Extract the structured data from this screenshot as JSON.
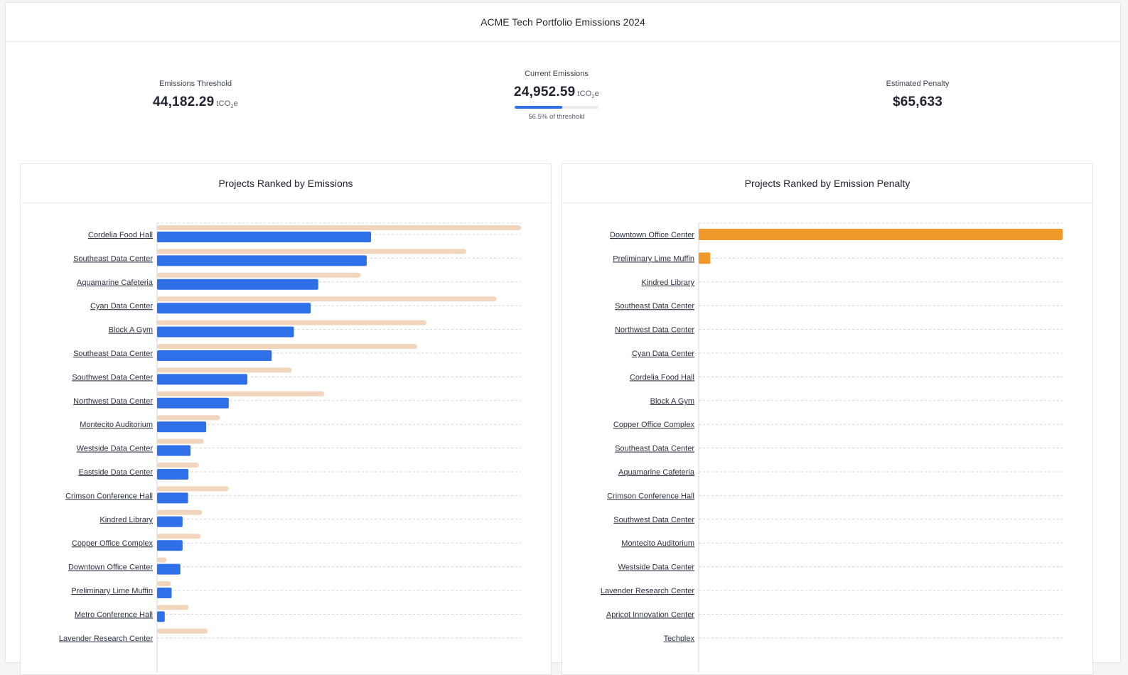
{
  "header": {
    "title": "ACME Tech Portfolio Emissions 2024"
  },
  "metrics": {
    "threshold": {
      "label": "Emissions Threshold",
      "value": "44,182.29",
      "unit": "tCO",
      "unit_sub": "2",
      "unit_tail": "e"
    },
    "current": {
      "label": "Current Emissions",
      "value": "24,952.59",
      "unit": "tCO",
      "unit_sub": "2",
      "unit_tail": "e",
      "progress_fraction": 0.565,
      "progress_caption": "56.5% of threshold"
    },
    "penalty": {
      "label": "Estimated Penalty",
      "value": "$65,633"
    }
  },
  "colors": {
    "emissions": "#2f6fe8",
    "threshold": "#f1d5bd",
    "penalty": "#f0992b",
    "grid": "#cfd3d8"
  },
  "chart_data": [
    {
      "type": "bar",
      "orientation": "horizontal",
      "title": "Projects Ranked by Emissions",
      "categories": [
        "Cordelia Food Hall",
        "Southeast Data Center",
        "Aquamarine Cafeteria",
        "Cyan Data Center",
        "Block A Gym",
        "Southeast Data Center",
        "Southwest Data Center",
        "Northwest Data Center",
        "Montecito Auditorium",
        "Westside Data Center",
        "Eastside Data Center",
        "Crimson Conference Hall",
        "Kindred Library",
        "Copper Office Complex",
        "Downtown Office Center",
        "Preliminary Lime Muffin",
        "Metro Conference Hall",
        "Lavender Research Center"
      ],
      "series": [
        {
          "key": "threshold",
          "values": [
            100,
            85,
            56,
            93.3,
            74,
            71.5,
            37,
            46,
            17.3,
            12.8,
            11.5,
            19.6,
            12.4,
            12,
            2.6,
            3.8,
            8.7,
            13.9
          ]
        },
        {
          "key": "emissions",
          "values": [
            58.8,
            57.6,
            44.3,
            42.2,
            37.6,
            31.5,
            24.8,
            19.7,
            13.5,
            9.2,
            8.6,
            8.5,
            7,
            7,
            6.4,
            4,
            2.1,
            0
          ]
        }
      ],
      "xlim": [
        0,
        100
      ],
      "grid": true
    },
    {
      "type": "bar",
      "orientation": "horizontal",
      "title": "Projects Ranked by Emission Penalty",
      "categories": [
        "Downtown Office Center",
        "Preliminary Lime Muffin",
        "Kindred Library",
        "Southeast Data Center",
        "Northwest Data Center",
        "Cyan Data Center",
        "Cordelia Food Hall",
        "Block A Gym",
        "Copper Office Complex",
        "Southeast Data Center",
        "Aquamarine Cafeteria",
        "Crimson Conference Hall",
        "Southwest Data Center",
        "Montecito Auditorium",
        "Westside Data Center",
        "Lavender Research Center",
        "Apricot Innovation Center",
        "Techplex"
      ],
      "series": [
        {
          "key": "penalty",
          "values": [
            100,
            3.2,
            0,
            0,
            0,
            0,
            0,
            0,
            0,
            0,
            0,
            0,
            0,
            0,
            0,
            0,
            0,
            0
          ]
        }
      ],
      "xlim": [
        0,
        100
      ],
      "grid": true
    }
  ]
}
